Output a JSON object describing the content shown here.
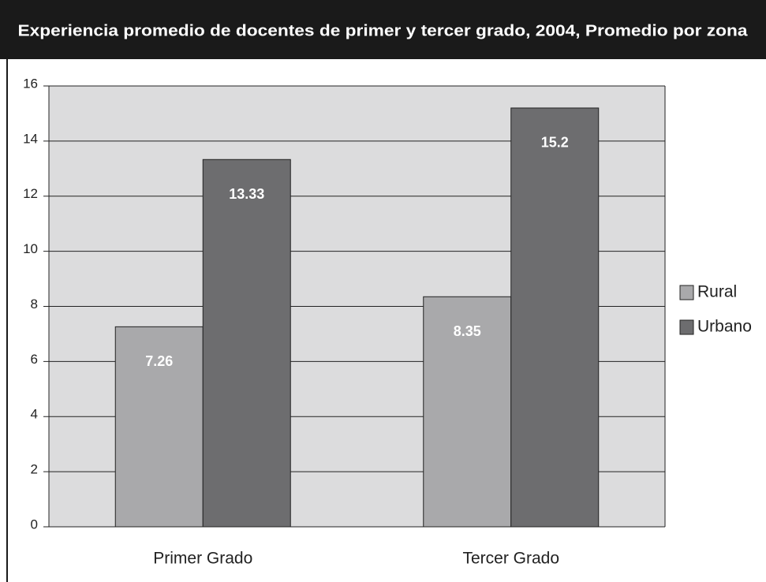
{
  "chart_data": {
    "type": "bar",
    "title": "Experiencia promedio de docentes de primer y tercer grado, 2004, Promedio por zona",
    "categories": [
      "Primer Grado",
      "Tercer Grado"
    ],
    "series": [
      {
        "name": "Rural",
        "color": "#a9a9ab",
        "values": [
          7.26,
          8.35
        ]
      },
      {
        "name": "Urbano",
        "color": "#6d6d6f",
        "values": [
          13.33,
          15.2
        ]
      }
    ],
    "ylim": [
      0,
      16
    ],
    "yticks": [
      0,
      2,
      4,
      6,
      8,
      10,
      12,
      14,
      16
    ],
    "grid": true,
    "legend": "right"
  }
}
